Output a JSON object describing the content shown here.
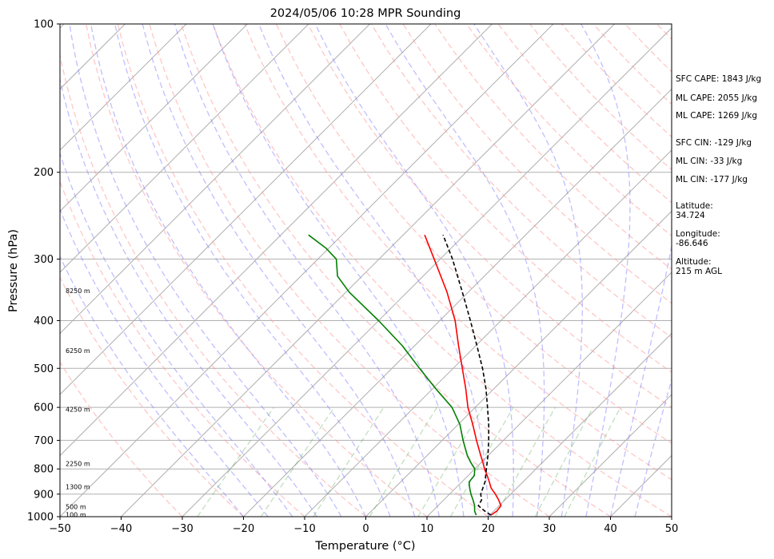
{
  "chart_data": {
    "type": "line",
    "title": "2024/05/06 10:28 MPR Sounding",
    "xlabel": "Temperature (°C)",
    "ylabel": "Pressure (hPa)",
    "xlim": [
      -50,
      50
    ],
    "ylim": [
      1000,
      100
    ],
    "y_scale": "log",
    "skew": "45-degree skew-T log-P",
    "x_ticks": [
      "−50",
      "−40",
      "−30",
      "−20",
      "−10",
      "0",
      "10",
      "20",
      "30",
      "40",
      "50"
    ],
    "y_ticks": [
      "100",
      "200",
      "300",
      "400",
      "500",
      "600",
      "700",
      "800",
      "900",
      "1000"
    ],
    "height_labels": [
      {
        "text": "100 m",
        "p": 990
      },
      {
        "text": "500 m",
        "p": 955
      },
      {
        "text": "1300 m",
        "p": 870
      },
      {
        "text": "2250 m",
        "p": 780
      },
      {
        "text": "4250 m",
        "p": 605
      },
      {
        "text": "6250 m",
        "p": 460
      },
      {
        "text": "8250 m",
        "p": 348
      }
    ],
    "series": [
      {
        "role": "temperature",
        "color": "#ff0000",
        "points": [
          {
            "p": 993,
            "t": 20.2
          },
          {
            "p": 975,
            "t": 20.5
          },
          {
            "p": 950,
            "t": 20.3
          },
          {
            "p": 925,
            "t": 19.0
          },
          {
            "p": 900,
            "t": 17.5
          },
          {
            "p": 875,
            "t": 15.8
          },
          {
            "p": 850,
            "t": 14.5
          },
          {
            "p": 825,
            "t": 13.1
          },
          {
            "p": 800,
            "t": 11.6
          },
          {
            "p": 775,
            "t": 10.2
          },
          {
            "p": 750,
            "t": 8.7
          },
          {
            "p": 700,
            "t": 5.6
          },
          {
            "p": 650,
            "t": 2.4
          },
          {
            "p": 600,
            "t": -1.2
          },
          {
            "p": 550,
            "t": -4.6
          },
          {
            "p": 500,
            "t": -8.5
          },
          {
            "p": 450,
            "t": -12.8
          },
          {
            "p": 400,
            "t": -17.5
          },
          {
            "p": 350,
            "t": -23.5
          },
          {
            "p": 300,
            "t": -31.0
          },
          {
            "p": 268,
            "t": -36.5
          }
        ]
      },
      {
        "role": "dewpoint",
        "color": "#008000",
        "points": [
          {
            "p": 993,
            "t": 17.8
          },
          {
            "p": 975,
            "t": 16.9
          },
          {
            "p": 950,
            "t": 16.0
          },
          {
            "p": 925,
            "t": 14.8
          },
          {
            "p": 900,
            "t": 13.5
          },
          {
            "p": 875,
            "t": 12.3
          },
          {
            "p": 850,
            "t": 11.2
          },
          {
            "p": 825,
            "t": 11.0
          },
          {
            "p": 800,
            "t": 10.0
          },
          {
            "p": 775,
            "t": 8.2
          },
          {
            "p": 750,
            "t": 6.5
          },
          {
            "p": 700,
            "t": 3.4
          },
          {
            "p": 650,
            "t": 0.3
          },
          {
            "p": 600,
            "t": -3.8
          },
          {
            "p": 550,
            "t": -9.5
          },
          {
            "p": 500,
            "t": -15.5
          },
          {
            "p": 450,
            "t": -22.0
          },
          {
            "p": 400,
            "t": -30.0
          },
          {
            "p": 350,
            "t": -39.5
          },
          {
            "p": 325,
            "t": -44.0
          },
          {
            "p": 300,
            "t": -47.0
          },
          {
            "p": 285,
            "t": -50.5
          },
          {
            "p": 268,
            "t": -55.5
          }
        ]
      },
      {
        "role": "parcel",
        "color": "#000000",
        "dashed": true,
        "points": [
          {
            "p": 993,
            "t": 20.2
          },
          {
            "p": 975,
            "t": 18.6
          },
          {
            "p": 950,
            "t": 16.6
          },
          {
            "p": 925,
            "t": 16.2
          },
          {
            "p": 900,
            "t": 15.1
          },
          {
            "p": 850,
            "t": 13.8
          },
          {
            "p": 800,
            "t": 11.9
          },
          {
            "p": 750,
            "t": 9.9
          },
          {
            "p": 700,
            "t": 7.6
          },
          {
            "p": 650,
            "t": 5.0
          },
          {
            "p": 600,
            "t": 2.0
          },
          {
            "p": 550,
            "t": -1.3
          },
          {
            "p": 500,
            "t": -5.2
          },
          {
            "p": 450,
            "t": -9.8
          },
          {
            "p": 400,
            "t": -15.0
          },
          {
            "p": 350,
            "t": -21.0
          },
          {
            "p": 300,
            "t": -28.0
          },
          {
            "p": 268,
            "t": -33.5
          }
        ]
      }
    ]
  },
  "side_panel": [
    "SFC CAPE: 1843 J/kg",
    "ML CAPE: 2055 J/kg",
    "ML CAPE: 1269 J/kg",
    "SFC CIN: -129 J/kg",
    "ML CIN: -33 J/kg",
    "ML CIN: -177 J/kg",
    "Latitude:",
    "34.724",
    "Longitude:",
    "-86.646",
    "Altitude:",
    "215 m AGL"
  ]
}
